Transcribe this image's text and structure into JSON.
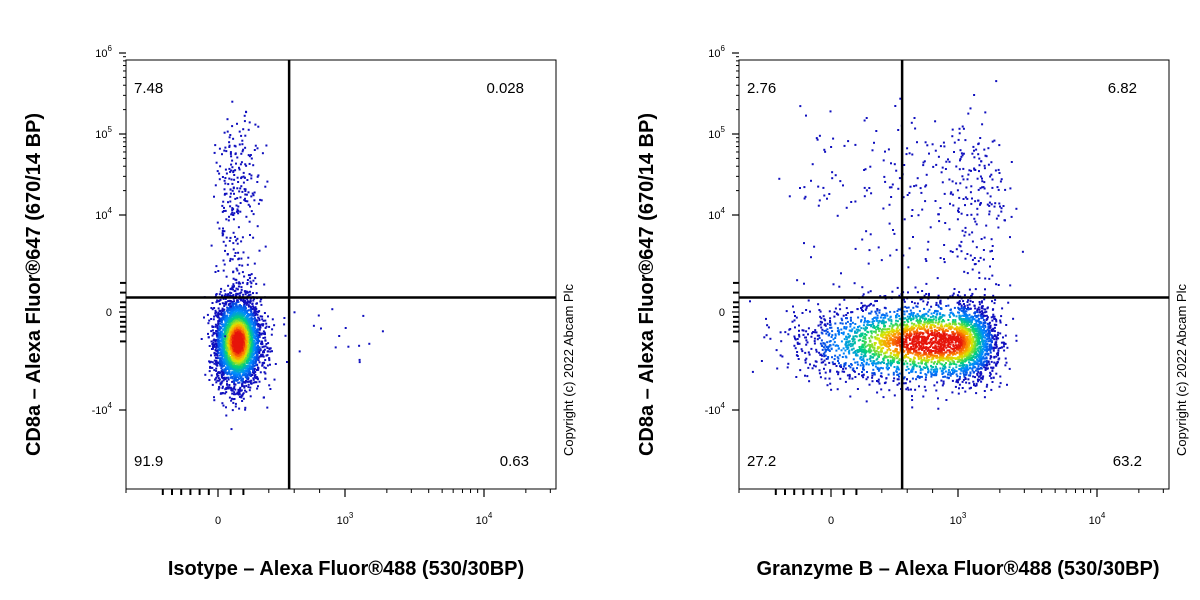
{
  "chart_data": [
    {
      "type": "scatter",
      "title": "",
      "xlabel": "Isotype – Alexa Fluor®488 (530/30BP)",
      "ylabel": "CD8a – Alexa Fluor®647 (670/14 BP)",
      "x_scale": "biexponential",
      "y_scale": "biexponential",
      "x_tick_labels": [
        "0",
        "10^3",
        "10^4"
      ],
      "y_tick_labels": [
        "10^6",
        "10^5",
        "10^4",
        "0",
        "-10^4"
      ],
      "gate": {
        "x": 560,
        "y": 1500
      },
      "quadrants": {
        "upper_left": "7.48",
        "upper_right": "0.028",
        "lower_left": "91.9",
        "lower_right": "0.63"
      },
      "populations": [
        {
          "x_mean": 150,
          "x_sd": 90,
          "y_mean": -3000,
          "y_sd": 2200,
          "fraction": 0.919,
          "density_peak": true
        },
        {
          "x_mean": 150,
          "x_sd": 90,
          "y_mean": 15000,
          "y_sd": 0.5,
          "log_y": true,
          "fraction": 0.075
        },
        {
          "x_mean": 900,
          "x_sd": 500,
          "y_mean": -2000,
          "y_sd": 1200,
          "fraction": 0.006
        }
      ],
      "copyright": "Copyright (c) 2022 Abcam Plc"
    },
    {
      "type": "scatter",
      "title": "",
      "xlabel": "Granzyme B – Alexa Fluor®488 (530/30BP)",
      "ylabel": "CD8a – Alexa Fluor®647 (670/14 BP)",
      "x_scale": "biexponential",
      "y_scale": "biexponential",
      "x_tick_labels": [
        "0",
        "10^3",
        "10^4"
      ],
      "y_tick_labels": [
        "10^6",
        "10^5",
        "10^4",
        "0",
        "-10^4"
      ],
      "gate": {
        "x": 560,
        "y": 1500
      },
      "quadrants": {
        "upper_left": "2.76",
        "upper_right": "6.82",
        "lower_left": "27.2",
        "lower_right": "63.2"
      },
      "populations": [
        {
          "x_mean": 800,
          "x_sd": 500,
          "y_mean": -3000,
          "y_sd": 2000,
          "fraction": 0.904,
          "density_peak": true
        },
        {
          "x_mean": 900,
          "x_sd": 600,
          "y_mean": 20000,
          "y_sd": 0.5,
          "log_y": true,
          "fraction": 0.096
        }
      ],
      "copyright": "Copyright (c) 2022 Abcam Plc"
    }
  ]
}
